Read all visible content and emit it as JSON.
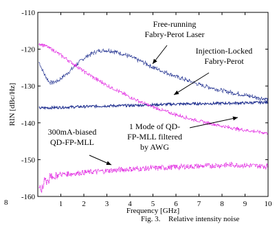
{
  "chart_data": {
    "type": "line",
    "title": "",
    "xlabel": "Frequency [GHz]",
    "ylabel": "RIN [dBc/Hz]",
    "xlim": [
      0,
      10
    ],
    "ylim": [
      -160,
      -110
    ],
    "xticks": [
      "1",
      "2",
      "3",
      "4",
      "5",
      "6",
      "7",
      "8",
      "9",
      "10"
    ],
    "yticks": [
      "-110",
      "-120",
      "-130",
      "-140",
      "-150",
      "-160"
    ],
    "grid": false,
    "legend": "none",
    "series": [
      {
        "name": "Free-running Fabry-Perot Laser",
        "color": "#1f2f8f",
        "x": [
          0.05,
          0.3,
          0.5,
          0.7,
          0.9,
          1.2,
          1.5,
          1.8,
          2.1,
          2.4,
          2.7,
          3.0,
          3.3,
          3.6,
          4.0,
          4.5,
          5.0,
          5.5,
          6.0,
          6.5,
          7.0,
          7.5,
          8.0,
          8.5,
          9.0,
          9.5,
          10.0
        ],
        "y": [
          -123.5,
          -127.0,
          -129.0,
          -129.0,
          -128.5,
          -127.0,
          -125.3,
          -123.5,
          -122.0,
          -121.0,
          -120.4,
          -120.3,
          -120.6,
          -121.1,
          -122.0,
          -123.3,
          -124.9,
          -126.2,
          -127.4,
          -128.5,
          -129.6,
          -130.4,
          -131.2,
          -131.9,
          -132.5,
          -133.1,
          -133.6
        ],
        "noise": 0.5
      },
      {
        "name": "Injection-Locked Fabry-Perot",
        "color": "#1f2f8f",
        "x": [
          0.05,
          1.0,
          2.0,
          3.0,
          4.0,
          5.0,
          6.0,
          7.0,
          8.0,
          9.0,
          10.0
        ],
        "y": [
          -136.0,
          -135.8,
          -135.6,
          -135.4,
          -135.3,
          -135.1,
          -134.9,
          -134.8,
          -134.7,
          -134.6,
          -134.4
        ],
        "noise": 0.35
      },
      {
        "name": "1 Mode of QD-FP-MLL filtered by AWG",
        "color": "#e020e0",
        "x": [
          0.05,
          0.3,
          0.6,
          1.0,
          1.5,
          2.0,
          2.5,
          3.0,
          3.5,
          4.0,
          4.5,
          5.0,
          5.5,
          6.0,
          6.5,
          7.0,
          7.5,
          8.0,
          8.5,
          9.0,
          9.5,
          10.0
        ],
        "y": [
          -118.5,
          -119.0,
          -120.0,
          -121.6,
          -123.8,
          -126.0,
          -128.0,
          -129.8,
          -131.4,
          -133.0,
          -134.4,
          -135.7,
          -136.8,
          -137.8,
          -138.7,
          -139.5,
          -140.2,
          -140.9,
          -141.5,
          -142.0,
          -142.4,
          -142.8
        ],
        "noise": 0.4
      },
      {
        "name": "300mA-biased QD-FP-MLL",
        "color": "#e020e0",
        "x": [
          0.05,
          0.2,
          0.4,
          0.7,
          1.0,
          1.5,
          2.0,
          3.0,
          4.0,
          5.0,
          6.0,
          7.0,
          8.0,
          8.5,
          9.0,
          10.0
        ],
        "y": [
          -159.5,
          -157.0,
          -155.5,
          -154.5,
          -154.0,
          -153.8,
          -153.5,
          -153.0,
          -152.6,
          -152.3,
          -152.0,
          -151.8,
          -151.5,
          -151.4,
          -151.6,
          -151.8
        ],
        "noise": 0.7
      }
    ],
    "annotations": [
      {
        "text": [
          "Free-running",
          "Fabry-Perot Laser"
        ]
      },
      {
        "text": [
          "Injection-Locked",
          "Fabry-Perot"
        ]
      },
      {
        "text": [
          "1 Mode of QD-",
          "FP-MLL filtered",
          "by AWG"
        ]
      },
      {
        "text": [
          "300mA-biased",
          "QD-FP-MLL"
        ]
      }
    ],
    "edge_labels": {
      "left_fragment": "8"
    },
    "caption": {
      "left": "Fig. 3.",
      "right": "Relative intensity noise"
    }
  }
}
